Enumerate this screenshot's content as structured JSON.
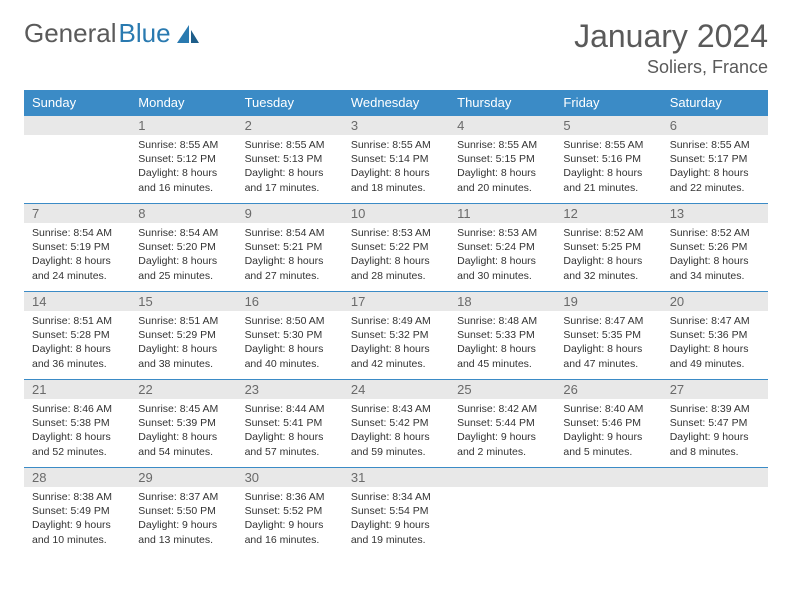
{
  "logo": {
    "part1": "General",
    "part2": "Blue"
  },
  "title": "January 2024",
  "location": "Soliers, France",
  "colors": {
    "header_bg": "#3b8bc6",
    "header_text": "#ffffff",
    "daynum_bg": "#e8e8e8",
    "daynum_text": "#6a6a6a",
    "body_text": "#333333",
    "rule": "#3b8bc6",
    "logo_gray": "#5a5a5a",
    "logo_blue": "#2a7ab0"
  },
  "weekdays": [
    "Sunday",
    "Monday",
    "Tuesday",
    "Wednesday",
    "Thursday",
    "Friday",
    "Saturday"
  ],
  "weeks": [
    [
      null,
      {
        "n": "1",
        "sr": "Sunrise: 8:55 AM",
        "ss": "Sunset: 5:12 PM",
        "d1": "Daylight: 8 hours",
        "d2": "and 16 minutes."
      },
      {
        "n": "2",
        "sr": "Sunrise: 8:55 AM",
        "ss": "Sunset: 5:13 PM",
        "d1": "Daylight: 8 hours",
        "d2": "and 17 minutes."
      },
      {
        "n": "3",
        "sr": "Sunrise: 8:55 AM",
        "ss": "Sunset: 5:14 PM",
        "d1": "Daylight: 8 hours",
        "d2": "and 18 minutes."
      },
      {
        "n": "4",
        "sr": "Sunrise: 8:55 AM",
        "ss": "Sunset: 5:15 PM",
        "d1": "Daylight: 8 hours",
        "d2": "and 20 minutes."
      },
      {
        "n": "5",
        "sr": "Sunrise: 8:55 AM",
        "ss": "Sunset: 5:16 PM",
        "d1": "Daylight: 8 hours",
        "d2": "and 21 minutes."
      },
      {
        "n": "6",
        "sr": "Sunrise: 8:55 AM",
        "ss": "Sunset: 5:17 PM",
        "d1": "Daylight: 8 hours",
        "d2": "and 22 minutes."
      }
    ],
    [
      {
        "n": "7",
        "sr": "Sunrise: 8:54 AM",
        "ss": "Sunset: 5:19 PM",
        "d1": "Daylight: 8 hours",
        "d2": "and 24 minutes."
      },
      {
        "n": "8",
        "sr": "Sunrise: 8:54 AM",
        "ss": "Sunset: 5:20 PM",
        "d1": "Daylight: 8 hours",
        "d2": "and 25 minutes."
      },
      {
        "n": "9",
        "sr": "Sunrise: 8:54 AM",
        "ss": "Sunset: 5:21 PM",
        "d1": "Daylight: 8 hours",
        "d2": "and 27 minutes."
      },
      {
        "n": "10",
        "sr": "Sunrise: 8:53 AM",
        "ss": "Sunset: 5:22 PM",
        "d1": "Daylight: 8 hours",
        "d2": "and 28 minutes."
      },
      {
        "n": "11",
        "sr": "Sunrise: 8:53 AM",
        "ss": "Sunset: 5:24 PM",
        "d1": "Daylight: 8 hours",
        "d2": "and 30 minutes."
      },
      {
        "n": "12",
        "sr": "Sunrise: 8:52 AM",
        "ss": "Sunset: 5:25 PM",
        "d1": "Daylight: 8 hours",
        "d2": "and 32 minutes."
      },
      {
        "n": "13",
        "sr": "Sunrise: 8:52 AM",
        "ss": "Sunset: 5:26 PM",
        "d1": "Daylight: 8 hours",
        "d2": "and 34 minutes."
      }
    ],
    [
      {
        "n": "14",
        "sr": "Sunrise: 8:51 AM",
        "ss": "Sunset: 5:28 PM",
        "d1": "Daylight: 8 hours",
        "d2": "and 36 minutes."
      },
      {
        "n": "15",
        "sr": "Sunrise: 8:51 AM",
        "ss": "Sunset: 5:29 PM",
        "d1": "Daylight: 8 hours",
        "d2": "and 38 minutes."
      },
      {
        "n": "16",
        "sr": "Sunrise: 8:50 AM",
        "ss": "Sunset: 5:30 PM",
        "d1": "Daylight: 8 hours",
        "d2": "and 40 minutes."
      },
      {
        "n": "17",
        "sr": "Sunrise: 8:49 AM",
        "ss": "Sunset: 5:32 PM",
        "d1": "Daylight: 8 hours",
        "d2": "and 42 minutes."
      },
      {
        "n": "18",
        "sr": "Sunrise: 8:48 AM",
        "ss": "Sunset: 5:33 PM",
        "d1": "Daylight: 8 hours",
        "d2": "and 45 minutes."
      },
      {
        "n": "19",
        "sr": "Sunrise: 8:47 AM",
        "ss": "Sunset: 5:35 PM",
        "d1": "Daylight: 8 hours",
        "d2": "and 47 minutes."
      },
      {
        "n": "20",
        "sr": "Sunrise: 8:47 AM",
        "ss": "Sunset: 5:36 PM",
        "d1": "Daylight: 8 hours",
        "d2": "and 49 minutes."
      }
    ],
    [
      {
        "n": "21",
        "sr": "Sunrise: 8:46 AM",
        "ss": "Sunset: 5:38 PM",
        "d1": "Daylight: 8 hours",
        "d2": "and 52 minutes."
      },
      {
        "n": "22",
        "sr": "Sunrise: 8:45 AM",
        "ss": "Sunset: 5:39 PM",
        "d1": "Daylight: 8 hours",
        "d2": "and 54 minutes."
      },
      {
        "n": "23",
        "sr": "Sunrise: 8:44 AM",
        "ss": "Sunset: 5:41 PM",
        "d1": "Daylight: 8 hours",
        "d2": "and 57 minutes."
      },
      {
        "n": "24",
        "sr": "Sunrise: 8:43 AM",
        "ss": "Sunset: 5:42 PM",
        "d1": "Daylight: 8 hours",
        "d2": "and 59 minutes."
      },
      {
        "n": "25",
        "sr": "Sunrise: 8:42 AM",
        "ss": "Sunset: 5:44 PM",
        "d1": "Daylight: 9 hours",
        "d2": "and 2 minutes."
      },
      {
        "n": "26",
        "sr": "Sunrise: 8:40 AM",
        "ss": "Sunset: 5:46 PM",
        "d1": "Daylight: 9 hours",
        "d2": "and 5 minutes."
      },
      {
        "n": "27",
        "sr": "Sunrise: 8:39 AM",
        "ss": "Sunset: 5:47 PM",
        "d1": "Daylight: 9 hours",
        "d2": "and 8 minutes."
      }
    ],
    [
      {
        "n": "28",
        "sr": "Sunrise: 8:38 AM",
        "ss": "Sunset: 5:49 PM",
        "d1": "Daylight: 9 hours",
        "d2": "and 10 minutes."
      },
      {
        "n": "29",
        "sr": "Sunrise: 8:37 AM",
        "ss": "Sunset: 5:50 PM",
        "d1": "Daylight: 9 hours",
        "d2": "and 13 minutes."
      },
      {
        "n": "30",
        "sr": "Sunrise: 8:36 AM",
        "ss": "Sunset: 5:52 PM",
        "d1": "Daylight: 9 hours",
        "d2": "and 16 minutes."
      },
      {
        "n": "31",
        "sr": "Sunrise: 8:34 AM",
        "ss": "Sunset: 5:54 PM",
        "d1": "Daylight: 9 hours",
        "d2": "and 19 minutes."
      },
      null,
      null,
      null
    ]
  ]
}
